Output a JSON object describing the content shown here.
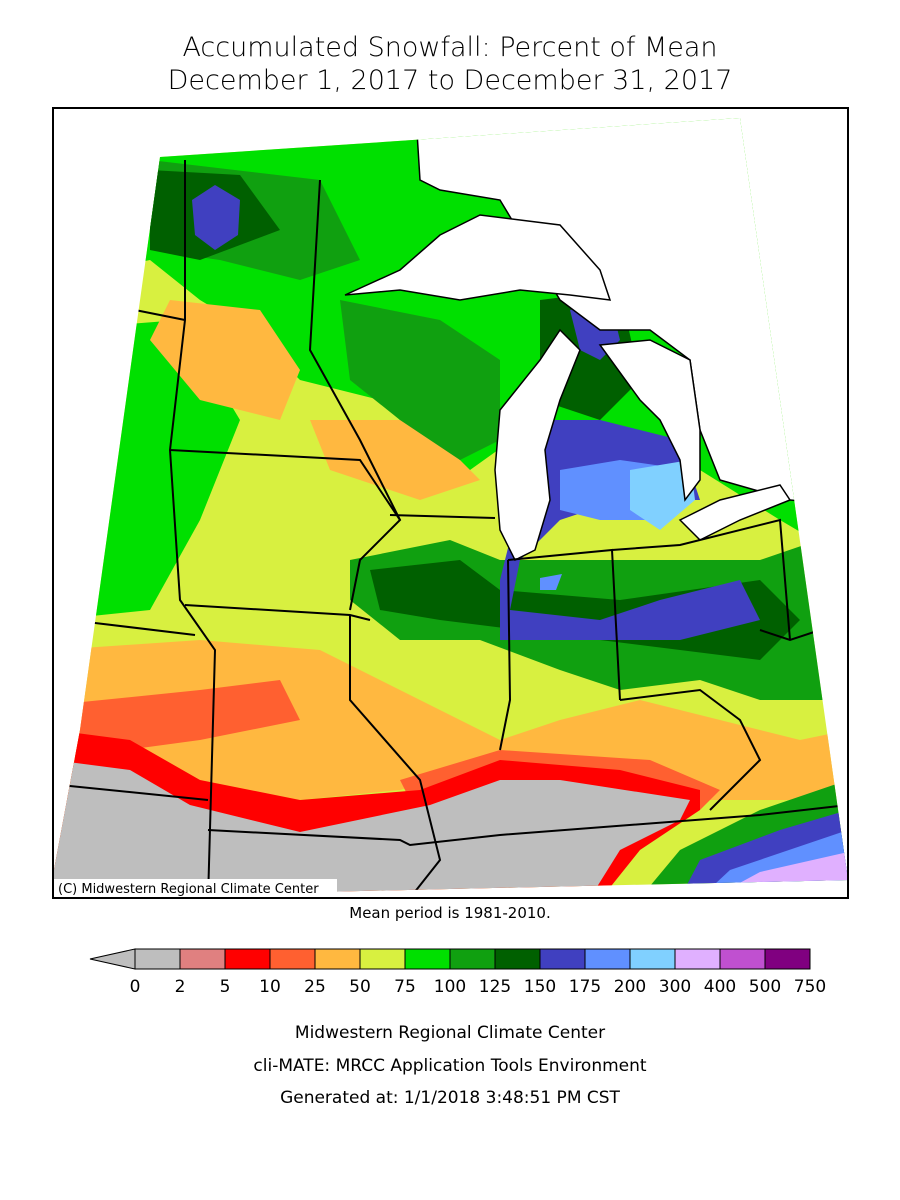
{
  "header": {
    "title": "Accumulated Snowfall: Percent of Mean",
    "subtitle": "December 1, 2017 to December 31, 2017"
  },
  "map": {
    "credit": "(C) Midwestern Regional Climate Center",
    "note": "Mean period is 1981-2010."
  },
  "legend": {
    "ticks": [
      0,
      2,
      5,
      10,
      25,
      50,
      75,
      100,
      125,
      150,
      175,
      200,
      300,
      400,
      500,
      750
    ],
    "under_color": "#bebebe",
    "colors": [
      "#bebebe",
      "#e08080",
      "#ff0000",
      "#ff6030",
      "#ffb840",
      "#d8f040",
      "#00e000",
      "#10a010",
      "#006000",
      "#4040c0",
      "#6090ff",
      "#80d0ff",
      "#e0b0ff",
      "#c050d0",
      "#800080"
    ]
  },
  "footer": {
    "lines": [
      "Midwestern Regional Climate Center",
      "cli-MATE: MRCC Application Tools Environment",
      "Generated at: 1/1/2018 3:48:51 PM CST"
    ]
  }
}
